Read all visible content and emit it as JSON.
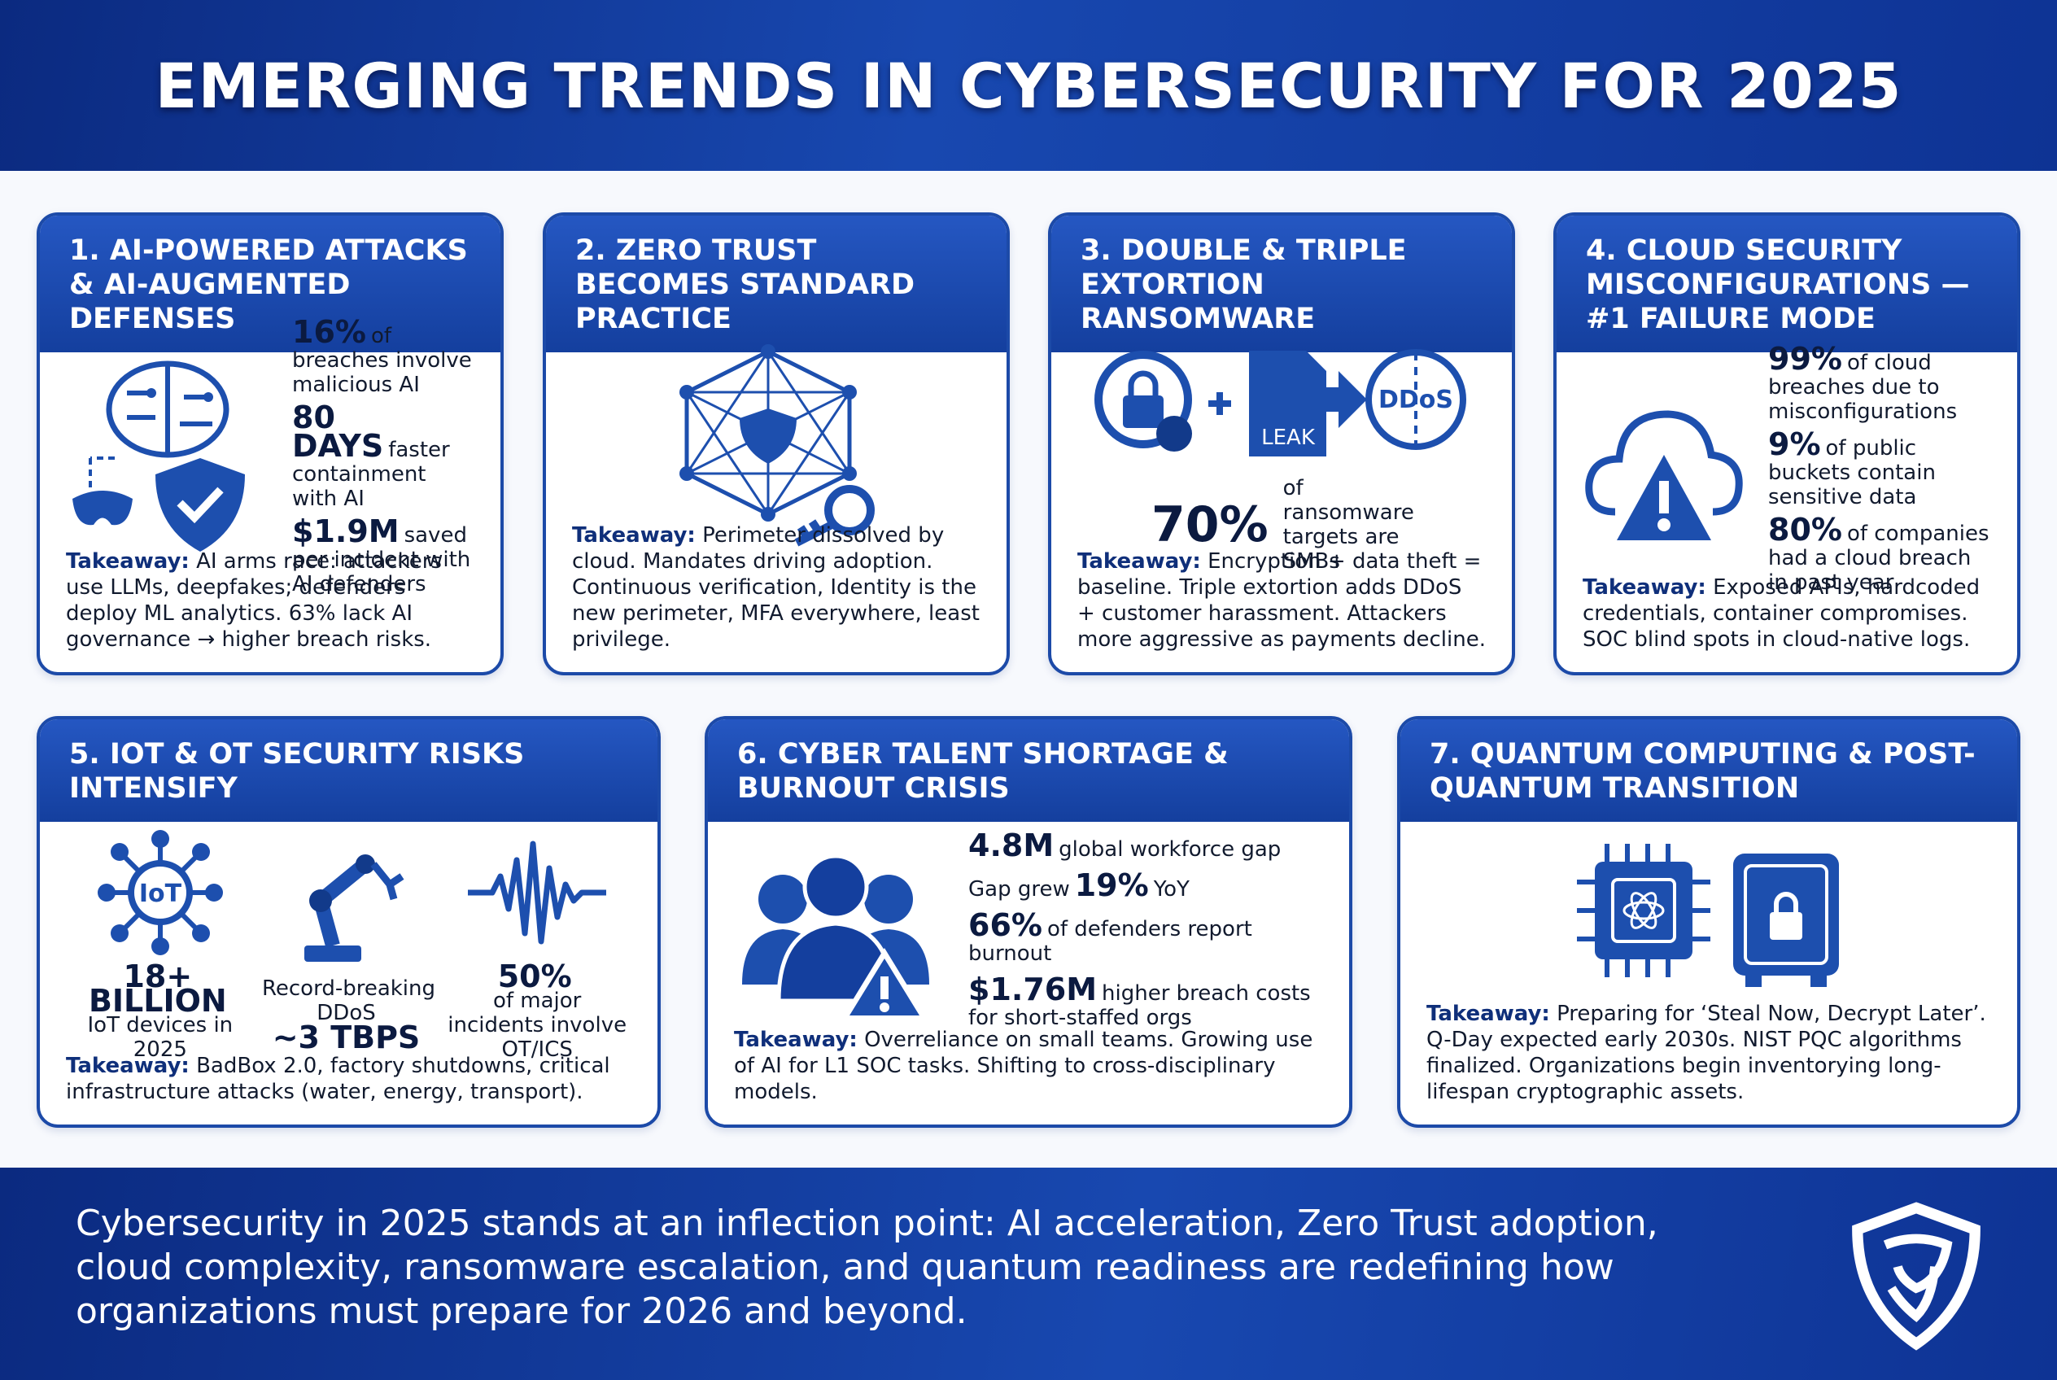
{
  "header": {
    "title": "EMERGING TRENDS IN CYBERSECURITY FOR 2025"
  },
  "cards": [
    {
      "title": "1. AI-POWERED ATTACKS & AI-AUGMENTED DEFENSES",
      "stats": [
        {
          "value": "16%",
          "post": "of breaches involve malicious AI"
        },
        {
          "value": "80 DAYS",
          "post": "faster containment with AI"
        },
        {
          "value": "$1.9M",
          "post": "saved per incident with AI defenders"
        }
      ],
      "takeaway_label": "Takeaway:",
      "takeaway": "AI arms race: attackers use LLMs, deepfakes; defenders deploy ML analytics. 63% lack AI governance → higher breach risks."
    },
    {
      "title": "2. ZERO TRUST BECOMES STANDARD PRACTICE",
      "stats": [],
      "takeaway_label": "Takeaway:",
      "takeaway": "Perimeter dissolved by cloud. Mandates driving adoption. Continuous verification, Identity is the new perimeter, MFA everywhere, least privilege."
    },
    {
      "title": "3. DOUBLE & TRIPLE EXTORTION RANSOMWARE",
      "icon_labels": [
        "LEAK",
        "DDoS"
      ],
      "stats": [
        {
          "value": "70%",
          "post": "of ransomware targets are SMBs"
        }
      ],
      "takeaway_label": "Takeaway:",
      "takeaway": "Encryption + data theft = baseline. Triple extortion adds DDoS + customer harassment. Attackers more aggressive as payments decline."
    },
    {
      "title": "4. CLOUD SECURITY MISCONFIGURATIONS — #1 FAILURE MODE",
      "stats": [
        {
          "value": "99%",
          "post": "of cloud breaches due to misconfigurations"
        },
        {
          "value": "9%",
          "post": "of public buckets contain sensitive data"
        },
        {
          "value": "80%",
          "post": "of companies had a cloud breach in past year"
        }
      ],
      "takeaway_label": "Takeaway:",
      "takeaway": "Exposed APIs, hardcoded credentials, container compromises. SOC blind spots in cloud-native logs."
    },
    {
      "title": "5. IOT & OT SECURITY RISKS INTENSIFY",
      "icon_labels": [
        "IoT"
      ],
      "stats": [
        {
          "value": "18+ BILLION",
          "post": "IoT devices in 2025"
        },
        {
          "pre": "Record-breaking DDoS",
          "value": "~3 TBPS"
        },
        {
          "value": "50%",
          "post": "of major incidents involve OT/ICS"
        }
      ],
      "takeaway_label": "Takeaway:",
      "takeaway": "BadBox 2.0, factory shutdowns, critical infrastructure attacks (water, energy, transport)."
    },
    {
      "title": "6. CYBER TALENT SHORTAGE & BURNOUT CRISIS",
      "stats": [
        {
          "value": "4.8M",
          "post": "global workforce gap"
        },
        {
          "pre": "Gap grew",
          "value": "19%",
          "post": "YoY"
        },
        {
          "value": "66%",
          "post": "of defenders report burnout"
        },
        {
          "value": "$1.76M",
          "post": "higher breach costs for short-staffed orgs"
        }
      ],
      "takeaway_label": "Takeaway:",
      "takeaway": "Overreliance on small teams. Growing use of AI for L1 SOC tasks. Shifting to cross-disciplinary models."
    },
    {
      "title": "7. QUANTUM COMPUTING & POST-QUANTUM TRANSITION",
      "stats": [],
      "takeaway_label": "Takeaway:",
      "takeaway": "Preparing for ‘Steal Now, Decrypt Later’. Q-Day expected early 2030s. NIST PQC algorithms finalized. Organizations begin inventorying long-lifespan cryptographic assets."
    }
  ],
  "footer": {
    "text": "Cybersecurity in 2025 stands at an inflection point: AI acceleration, Zero Trust adoption, cloud complexity, ransomware escalation, and quantum readiness are redefining how organizations must prepare for 2026 and beyond."
  }
}
